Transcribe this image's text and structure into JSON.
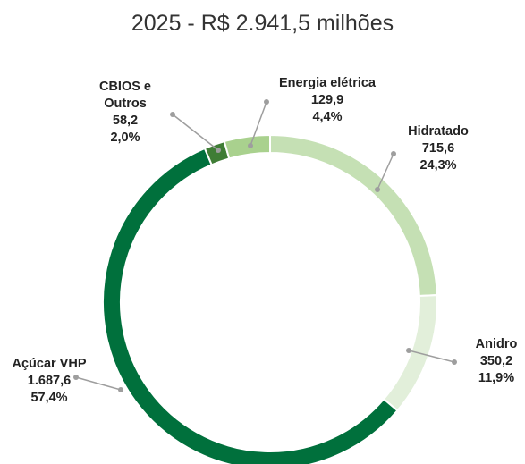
{
  "chart_data": {
    "type": "pie",
    "donut": true,
    "title": "2025 - R$ 2.941,5 milhões",
    "categories": [
      "Hidratado",
      "Anidro",
      "Açúcar VHP",
      "CBIOS e Outros",
      "Energia elétrica"
    ],
    "values": [
      715.6,
      350.2,
      1687.6,
      58.2,
      129.9
    ],
    "value_labels": [
      "715,6",
      "350,2",
      "1.687,6",
      "58,2",
      "129,9"
    ],
    "percentages": [
      24.3,
      11.9,
      57.4,
      2.0,
      4.4
    ],
    "percentage_labels": [
      "24,3%",
      "11,9%",
      "57,4%",
      "2,0%",
      "4,4%"
    ],
    "colors": [
      "#c5e0b4",
      "#e2efda",
      "#00703c",
      "#3f7d35",
      "#a9d18e"
    ]
  }
}
